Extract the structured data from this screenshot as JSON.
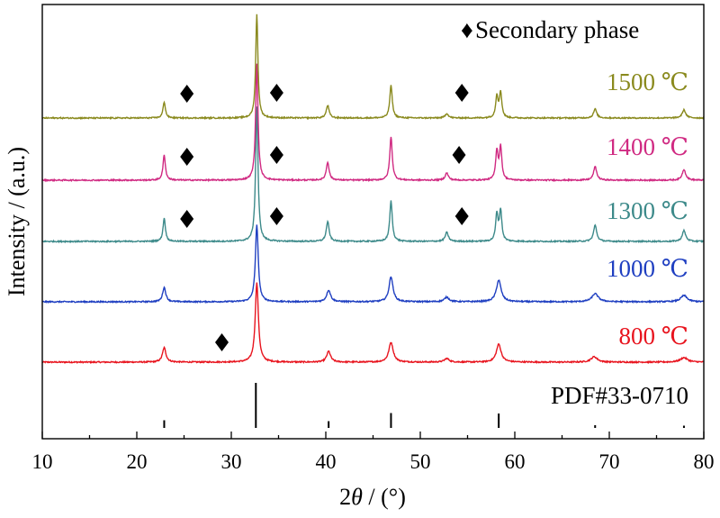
{
  "chart_data": {
    "type": "line",
    "title": "",
    "xlabel": "2θ / (°)",
    "xlabel_prefix": "2",
    "xlabel_theta": "θ",
    "xlabel_unit": " / (°)",
    "ylabel": "Intensity / (a.u.)",
    "xlim": [
      10,
      80
    ],
    "x_ticks": [
      "10",
      "20",
      "30",
      "40",
      "50",
      "60",
      "70",
      "80"
    ],
    "y_ticks_shown": false,
    "legend": {
      "symbol": "♦",
      "text": "Secondary phase",
      "placement": "top-right"
    },
    "reference": {
      "name": "PDF#33-0710",
      "color": "#000000",
      "peaks": [
        {
          "x": 22.9,
          "y": 0.17
        },
        {
          "x": 32.6,
          "y": 1.0
        },
        {
          "x": 40.3,
          "y": 0.15
        },
        {
          "x": 46.9,
          "y": 0.33
        },
        {
          "x": 58.3,
          "y": 0.32
        },
        {
          "x": 68.5,
          "y": 0.06
        },
        {
          "x": 77.9,
          "y": 0.05
        }
      ]
    },
    "series": [
      {
        "name": "800 ℃",
        "color": "#e8141e",
        "peaks": [
          {
            "x": 22.9,
            "h": 0.16,
            "w": 0.22
          },
          {
            "x": 32.7,
            "h": 0.88,
            "w": 0.2
          },
          {
            "x": 40.3,
            "h": 0.12,
            "w": 0.25
          },
          {
            "x": 46.9,
            "h": 0.22,
            "w": 0.28
          },
          {
            "x": 52.8,
            "h": 0.04,
            "w": 0.3
          },
          {
            "x": 58.3,
            "h": 0.2,
            "w": 0.3
          },
          {
            "x": 68.4,
            "h": 0.06,
            "w": 0.4
          },
          {
            "x": 77.9,
            "h": 0.05,
            "w": 0.45
          }
        ],
        "secondary_phase_x": [
          29.0
        ]
      },
      {
        "name": "1000 ℃",
        "color": "#1f3fc1",
        "peaks": [
          {
            "x": 22.9,
            "h": 0.16,
            "w": 0.2
          },
          {
            "x": 32.7,
            "h": 0.85,
            "w": 0.18
          },
          {
            "x": 40.3,
            "h": 0.13,
            "w": 0.25
          },
          {
            "x": 46.9,
            "h": 0.28,
            "w": 0.25
          },
          {
            "x": 52.8,
            "h": 0.05,
            "w": 0.3
          },
          {
            "x": 58.3,
            "h": 0.24,
            "w": 0.3
          },
          {
            "x": 68.5,
            "h": 0.09,
            "w": 0.4
          },
          {
            "x": 77.9,
            "h": 0.07,
            "w": 0.4
          }
        ],
        "secondary_phase_x": []
      },
      {
        "name": "1300 ℃",
        "color": "#3d8a8a",
        "peaks": [
          {
            "x": 22.9,
            "h": 0.26,
            "w": 0.15
          },
          {
            "x": 32.7,
            "h": 1.5,
            "w": 0.15
          },
          {
            "x": 40.2,
            "h": 0.22,
            "w": 0.18
          },
          {
            "x": 46.9,
            "h": 0.45,
            "w": 0.16
          },
          {
            "x": 52.8,
            "h": 0.1,
            "w": 0.2
          },
          {
            "x": 58.1,
            "h": 0.3,
            "w": 0.15
          },
          {
            "x": 58.5,
            "h": 0.34,
            "w": 0.15
          },
          {
            "x": 68.5,
            "h": 0.18,
            "w": 0.2
          },
          {
            "x": 77.9,
            "h": 0.12,
            "w": 0.22
          }
        ],
        "secondary_phase_x": [
          25.3,
          34.8,
          54.4
        ]
      },
      {
        "name": "1400 ℃",
        "color": "#d02a82",
        "peaks": [
          {
            "x": 22.9,
            "h": 0.28,
            "w": 0.15
          },
          {
            "x": 32.7,
            "h": 1.3,
            "w": 0.15
          },
          {
            "x": 40.2,
            "h": 0.2,
            "w": 0.18
          },
          {
            "x": 46.9,
            "h": 0.48,
            "w": 0.16
          },
          {
            "x": 52.8,
            "h": 0.08,
            "w": 0.2
          },
          {
            "x": 58.1,
            "h": 0.32,
            "w": 0.15
          },
          {
            "x": 58.5,
            "h": 0.36,
            "w": 0.15
          },
          {
            "x": 68.5,
            "h": 0.15,
            "w": 0.2
          },
          {
            "x": 77.9,
            "h": 0.12,
            "w": 0.22
          }
        ],
        "secondary_phase_x": [
          25.3,
          34.8,
          54.1
        ]
      },
      {
        "name": "1500 ℃",
        "color": "#8a8a1e",
        "peaks": [
          {
            "x": 22.9,
            "h": 0.18,
            "w": 0.15
          },
          {
            "x": 32.7,
            "h": 1.15,
            "w": 0.14
          },
          {
            "x": 40.2,
            "h": 0.14,
            "w": 0.18
          },
          {
            "x": 46.9,
            "h": 0.36,
            "w": 0.16
          },
          {
            "x": 52.8,
            "h": 0.05,
            "w": 0.2
          },
          {
            "x": 58.1,
            "h": 0.24,
            "w": 0.15
          },
          {
            "x": 58.5,
            "h": 0.28,
            "w": 0.15
          },
          {
            "x": 68.5,
            "h": 0.1,
            "w": 0.2
          },
          {
            "x": 77.9,
            "h": 0.09,
            "w": 0.22
          }
        ],
        "secondary_phase_x": [
          25.3,
          34.8,
          54.4
        ]
      }
    ]
  }
}
